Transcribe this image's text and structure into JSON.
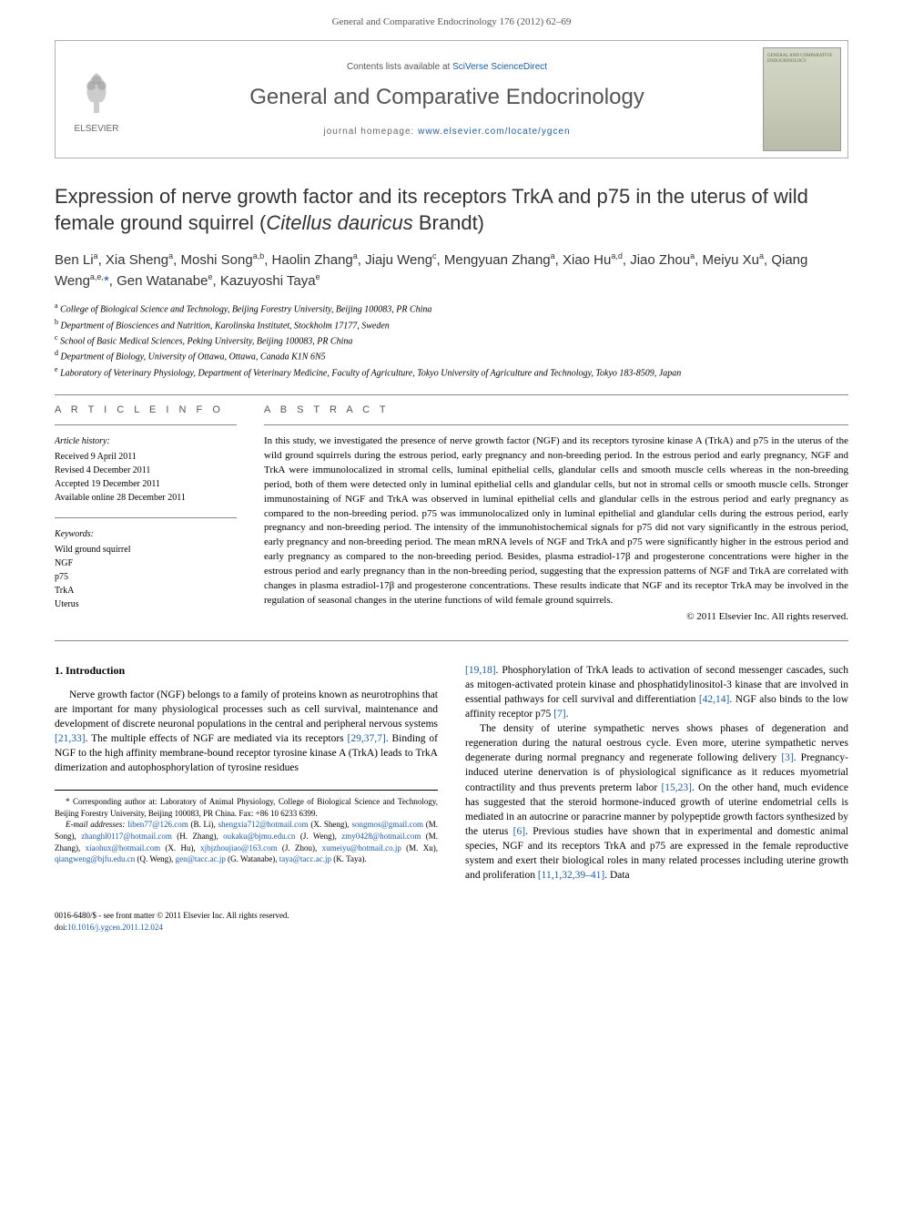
{
  "journal_ref": "General and Comparative Endocrinology 176 (2012) 62–69",
  "header": {
    "contents_prefix": "Contents lists available at ",
    "contents_link": "SciVerse ScienceDirect",
    "journal_name": "General and Comparative Endocrinology",
    "homepage_prefix": "journal homepage: ",
    "homepage_url": "www.elsevier.com/locate/ygcen",
    "publisher": "ELSEVIER",
    "cover_text": "GENERAL AND COMPARATIVE ENDOCRINOLOGY"
  },
  "title_pre": "Expression of nerve growth factor and its receptors TrkA and p75 in the uterus of wild female ground squirrel (",
  "title_italic": "Citellus dauricus",
  "title_post": " Brandt)",
  "authors_html": "Ben Li<sup>a</sup>, Xia Sheng<sup>a</sup>, Moshi Song<sup>a,b</sup>, Haolin Zhang<sup>a</sup>, Jiaju Weng<sup>c</sup>, Mengyuan Zhang<sup>a</sup>, Xiao Hu<sup>a,d</sup>, Jiao Zhou<sup>a</sup>, Meiyu Xu<sup>a</sup>, Qiang Weng<sup>a,e,</sup><a href='#'>*</a>, Gen Watanabe<sup>e</sup>, Kazuyoshi Taya<sup>e</sup>",
  "affiliations": [
    {
      "sup": "a",
      "text": "College of Biological Science and Technology, Beijing Forestry University, Beijing 100083, PR China"
    },
    {
      "sup": "b",
      "text": "Department of Biosciences and Nutrition, Karolinska Institutet, Stockholm 17177, Sweden"
    },
    {
      "sup": "c",
      "text": "School of Basic Medical Sciences, Peking University, Beijing 100083, PR China"
    },
    {
      "sup": "d",
      "text": "Department of Biology, University of Ottawa, Ottawa, Canada K1N 6N5"
    },
    {
      "sup": "e",
      "text": "Laboratory of Veterinary Physiology, Department of Veterinary Medicine, Faculty of Agriculture, Tokyo University of Agriculture and Technology, Tokyo 183-8509, Japan"
    }
  ],
  "info": {
    "heading": "A R T I C L E   I N F O",
    "history_label": "Article history:",
    "history": [
      "Received 9 April 2011",
      "Revised 4 December 2011",
      "Accepted 19 December 2011",
      "Available online 28 December 2011"
    ],
    "keywords_label": "Keywords:",
    "keywords": [
      "Wild ground squirrel",
      "NGF",
      "p75",
      "TrkA",
      "Uterus"
    ]
  },
  "abstract": {
    "heading": "A B S T R A C T",
    "text": "In this study, we investigated the presence of nerve growth factor (NGF) and its receptors tyrosine kinase A (TrkA) and p75 in the uterus of the wild ground squirrels during the estrous period, early pregnancy and non-breeding period. In the estrous period and early pregnancy, NGF and TrkA were immunolocalized in stromal cells, luminal epithelial cells, glandular cells and smooth muscle cells whereas in the non-breeding period, both of them were detected only in luminal epithelial cells and glandular cells, but not in stromal cells or smooth muscle cells. Stronger immunostaining of NGF and TrkA was observed in luminal epithelial cells and glandular cells in the estrous period and early pregnancy as compared to the non-breeding period. p75 was immunolocalized only in luminal epithelial and glandular cells during the estrous period, early pregnancy and non-breeding period. The intensity of the immunohistochemical signals for p75 did not vary significantly in the estrous period, early pregnancy and non-breeding period. The mean mRNA levels of NGF and TrkA and p75 were significantly higher in the estrous period and early pregnancy as compared to the non-breeding period. Besides, plasma estradiol-17β and progesterone concentrations were higher in the estrous period and early pregnancy than in the non-breeding period, suggesting that the expression patterns of NGF and TrkA are correlated with changes in plasma estradiol-17β and progesterone concentrations. These results indicate that NGF and its receptor TrkA may be involved in the regulation of seasonal changes in the uterine functions of wild female ground squirrels.",
    "copyright": "© 2011 Elsevier Inc. All rights reserved."
  },
  "body": {
    "section_heading": "1. Introduction",
    "left_p1_pre": "Nerve growth factor (NGF) belongs to a family of proteins known as neurotrophins that are important for many physiological processes such as cell survival, maintenance and development of discrete neuronal populations in the central and peripheral nervous systems ",
    "left_p1_link1": "[21,33]",
    "left_p1_mid": ". The multiple effects of NGF are mediated via its receptors ",
    "left_p1_link2": "[29,37,7]",
    "left_p1_post": ". Binding of NGF to the high affinity membrane-bound receptor tyrosine kinase A (TrkA) leads to TrkA dimerization and autophosphorylation of tyrosine residues",
    "right_p1_link1": "[19,18]",
    "right_p1_a": ". Phosphorylation of TrkA leads to activation of second messenger cascades, such as mitogen-activated protein kinase and phosphatidylinositol-3 kinase that are involved in essential pathways for cell survival and differentiation ",
    "right_p1_link2": "[42,14]",
    "right_p1_b": ". NGF also binds to the low affinity receptor p75 ",
    "right_p1_link3": "[7]",
    "right_p1_c": ".",
    "right_p2_a": "The density of uterine sympathetic nerves shows phases of degeneration and regeneration during the natural oestrous cycle. Even more, uterine sympathetic nerves degenerate during normal pregnancy and regenerate following delivery ",
    "right_p2_link1": "[3]",
    "right_p2_b": ". Pregnancy-induced uterine denervation is of physiological significance as it reduces myometrial contractility and thus prevents preterm labor ",
    "right_p2_link2": "[15,23]",
    "right_p2_c": ". On the other hand, much evidence has suggested that the steroid hormone-induced growth of uterine endometrial cells is mediated in an autocrine or paracrine manner by polypeptide growth factors synthesized by the uterus ",
    "right_p2_link3": "[6]",
    "right_p2_d": ". Previous studies have shown that in experimental and domestic animal species, NGF and its receptors TrkA and p75 are expressed in the female reproductive system and exert their biological roles in many related processes including uterine growth and proliferation ",
    "right_p2_link4": "[11,1,32,39–41]",
    "right_p2_e": ". Data"
  },
  "footnotes": {
    "corr_label": "* Corresponding author at: Laboratory of Animal Physiology, College of Biological Science and Technology, Beijing Forestry University, Beijing 100083, PR China. Fax: +86 10 6233 6399.",
    "email_label": "E-mail addresses:",
    "emails": [
      {
        "addr": "liben77@126.com",
        "who": "(B. Li)"
      },
      {
        "addr": "shengxia712@hotmail.com",
        "who": "(X. Sheng)"
      },
      {
        "addr": "songmos@gmail.com",
        "who": "(M. Song)"
      },
      {
        "addr": "zhanghl0117@hotmail.com",
        "who": "(H. Zhang)"
      },
      {
        "addr": "oukaku@bjmu.edu.cn",
        "who": "(J. Weng)"
      },
      {
        "addr": "zmy0428@hotmail.com",
        "who": "(M. Zhang)"
      },
      {
        "addr": "xiaohux@hotmail.com",
        "who": "(X. Hu)"
      },
      {
        "addr": "xjbjzhoujiao@163.com",
        "who": "(J. Zhou)"
      },
      {
        "addr": "xumeiyu@hotmail.co.jp",
        "who": "(M. Xu)"
      },
      {
        "addr": "qiangweng@bjfu.edu.cn",
        "who": "(Q. Weng)"
      },
      {
        "addr": "gen@tacc.ac.jp",
        "who": "(G. Watanabe)"
      },
      {
        "addr": "taya@tacc.ac.jp",
        "who": "(K. Taya)"
      }
    ]
  },
  "footer": {
    "line1": "0016-6480/$ - see front matter © 2011 Elsevier Inc. All rights reserved.",
    "doi_label": "doi:",
    "doi": "10.1016/j.ygcen.2011.12.024"
  },
  "colors": {
    "link": "#1a5a9e",
    "text": "#000000",
    "muted": "#555555",
    "border": "#b0b0b0"
  }
}
